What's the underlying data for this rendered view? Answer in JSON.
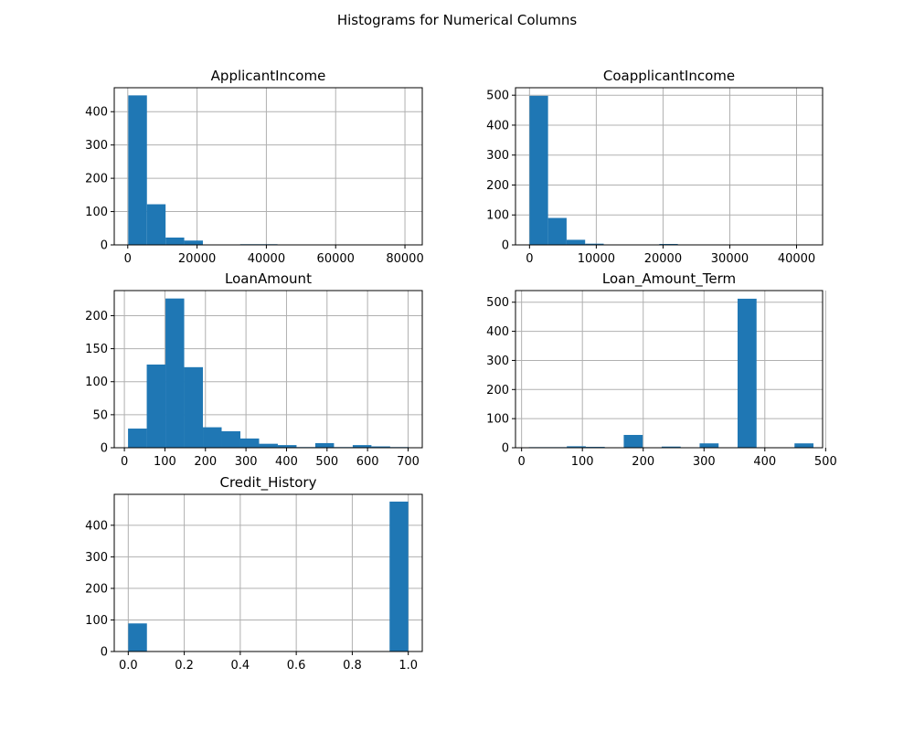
{
  "figure": {
    "title": "Histograms for Numerical Columns",
    "bar_color": "#1f77b4",
    "grid_color": "#b0b0b0"
  },
  "chart_data": [
    {
      "type": "bar",
      "title": "ApplicantIncome",
      "bins": 15,
      "xlim": [
        -3900,
        85000
      ],
      "ylim": [
        0,
        472
      ],
      "xticks": [
        0,
        20000,
        40000,
        60000,
        80000
      ],
      "xtick_labels": [
        "0",
        "20000",
        "40000",
        "60000",
        "80000"
      ],
      "yticks": [
        0,
        100,
        200,
        300,
        400
      ],
      "ytick_labels": [
        "0",
        "100",
        "200",
        "300",
        "400"
      ],
      "grid": true,
      "bin_edges": [
        150,
        5533,
        10917,
        16300,
        21683,
        27067,
        32450,
        37833,
        43217,
        48600,
        53983,
        59367,
        64750,
        70133,
        75517,
        80900
      ],
      "values": [
        449,
        122,
        22,
        13,
        0,
        0,
        2,
        2,
        0,
        0,
        0,
        0,
        0,
        1,
        1
      ]
    },
    {
      "type": "bar",
      "title": "CoapplicantIncome",
      "bins": 15,
      "xlim": [
        -2100,
        43900
      ],
      "ylim": [
        0,
        525
      ],
      "xticks": [
        0,
        10000,
        20000,
        30000,
        40000
      ],
      "xtick_labels": [
        "0",
        "10000",
        "20000",
        "30000",
        "40000"
      ],
      "yticks": [
        0,
        100,
        200,
        300,
        400,
        500
      ],
      "ytick_labels": [
        "0",
        "100",
        "200",
        "300",
        "400",
        "500"
      ],
      "grid": true,
      "bin_edges": [
        0,
        2777,
        5555,
        8332,
        11109,
        13887,
        16664,
        19441,
        22219,
        24996,
        27773,
        30551,
        33328,
        36105,
        38883,
        41660
      ],
      "values": [
        498,
        90,
        17,
        4,
        0,
        0,
        0,
        3,
        0,
        0,
        0,
        0,
        0,
        0,
        1
      ]
    },
    {
      "type": "bar",
      "title": "LoanAmount",
      "bins": 15,
      "xlim": [
        -25,
        735
      ],
      "ylim": [
        0,
        238
      ],
      "xticks": [
        0,
        100,
        200,
        300,
        400,
        500,
        600,
        700
      ],
      "xtick_labels": [
        "0",
        "100",
        "200",
        "300",
        "400",
        "500",
        "600",
        "700"
      ],
      "yticks": [
        0,
        50,
        100,
        150,
        200
      ],
      "ytick_labels": [
        "0",
        "50",
        "100",
        "150",
        "200"
      ],
      "grid": true,
      "bin_edges": [
        9,
        55.2,
        101.4,
        147.6,
        193.8,
        240,
        286.2,
        332.4,
        378.6,
        424.8,
        471,
        517.2,
        563.4,
        609.6,
        655.8,
        702
      ],
      "values": [
        29,
        126,
        226,
        122,
        31,
        25,
        14,
        6,
        4,
        1,
        7,
        1,
        4,
        2,
        1
      ]
    },
    {
      "type": "bar",
      "title": "Loan_Amount_Term",
      "bins": 15,
      "xlim": [
        -10,
        495
      ],
      "ylim": [
        0,
        540
      ],
      "xticks": [
        0,
        100,
        200,
        300,
        400,
        500
      ],
      "xtick_labels": [
        "0",
        "100",
        "200",
        "300",
        "400",
        "500"
      ],
      "yticks": [
        0,
        100,
        200,
        300,
        400,
        500
      ],
      "ytick_labels": [
        "0",
        "100",
        "200",
        "300",
        "400",
        "500"
      ],
      "grid": true,
      "bin_edges": [
        12,
        43.2,
        74.4,
        105.6,
        136.8,
        168,
        199.2,
        230.4,
        261.6,
        292.8,
        324,
        355.2,
        386.4,
        417.6,
        448.8,
        480
      ],
      "values": [
        2,
        2,
        5,
        3,
        0,
        44,
        0,
        4,
        0,
        15,
        0,
        512,
        0,
        0,
        15
      ]
    },
    {
      "type": "bar",
      "title": "Credit_History",
      "bins": 15,
      "xlim": [
        -0.05,
        1.05
      ],
      "ylim": [
        0,
        498
      ],
      "xticks": [
        0.0,
        0.2,
        0.4,
        0.6,
        0.8,
        1.0
      ],
      "xtick_labels": [
        "0.0",
        "0.2",
        "0.4",
        "0.6",
        "0.8",
        "1.0"
      ],
      "yticks": [
        0,
        100,
        200,
        300,
        400
      ],
      "ytick_labels": [
        "0",
        "100",
        "200",
        "300",
        "400"
      ],
      "grid": true,
      "bin_edges": [
        0,
        0.0667,
        0.1333,
        0.2,
        0.2667,
        0.3333,
        0.4,
        0.4667,
        0.5333,
        0.6,
        0.6667,
        0.7333,
        0.8,
        0.8667,
        0.9333,
        1.0
      ],
      "values": [
        89,
        0,
        0,
        0,
        0,
        0,
        0,
        0,
        0,
        0,
        0,
        0,
        0,
        0,
        475
      ]
    }
  ]
}
